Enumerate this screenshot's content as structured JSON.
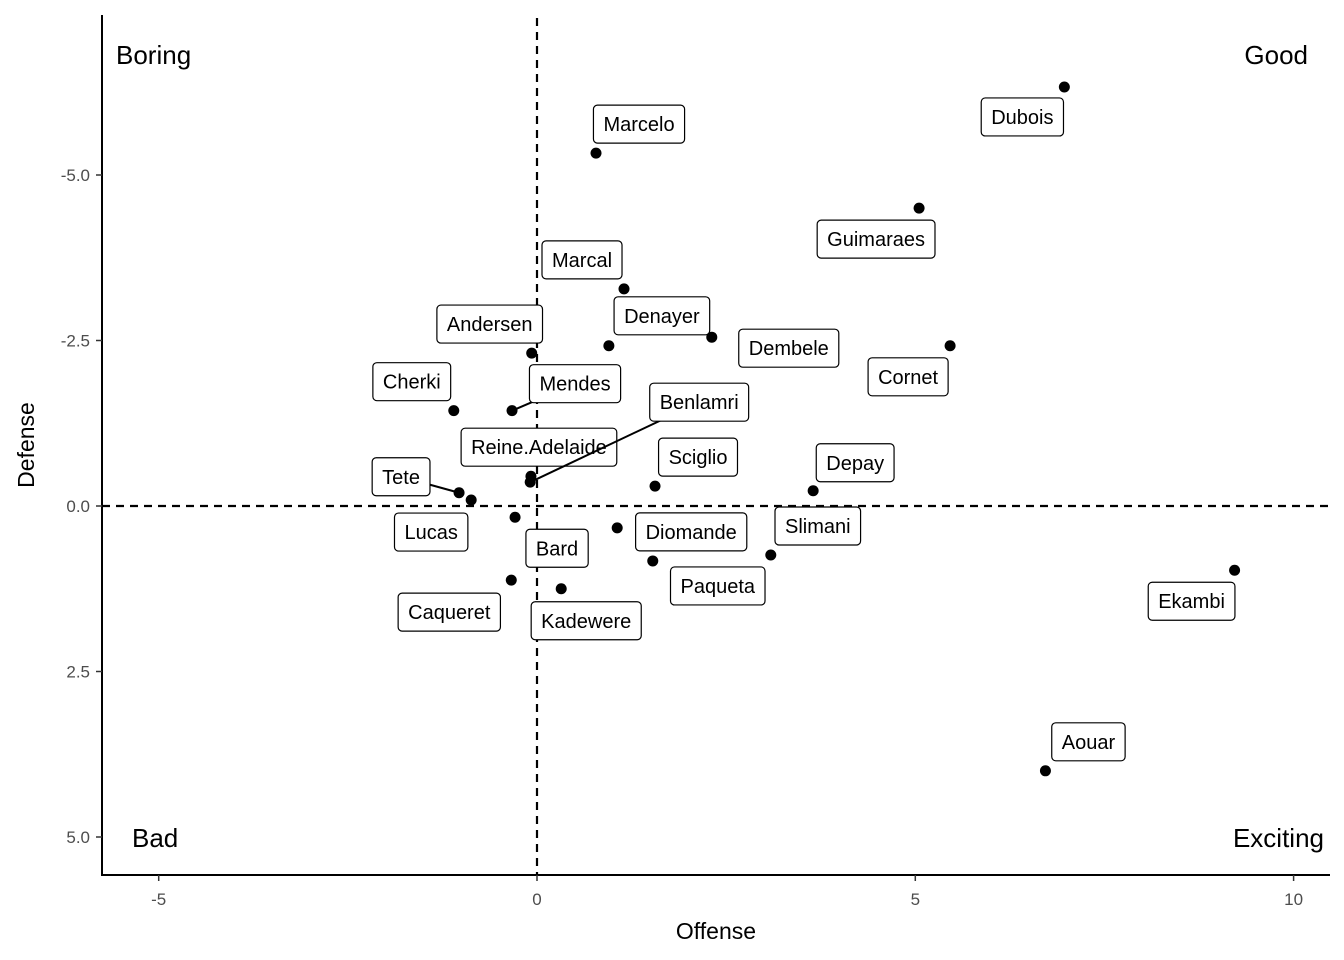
{
  "chart_data": {
    "type": "scatter",
    "xlabel": "Offense",
    "ylabel": "Defense",
    "xlim": [
      -5.8,
      10.4
    ],
    "ylim": [
      -7.4,
      5.6
    ],
    "y_reversed": true,
    "x_ticks": [
      -5,
      0,
      5,
      10
    ],
    "x_tick_labels": [
      "-5",
      "0",
      "5",
      "10"
    ],
    "y_ticks": [
      -5,
      -2.5,
      0,
      2.5,
      5
    ],
    "y_tick_labels": [
      "-5.0",
      "-2.5",
      "0.0",
      "2.5",
      "5.0"
    ],
    "reference_lines": {
      "x": 0,
      "y": 0,
      "style": "dashed"
    },
    "quadrant_labels": {
      "top_left": "Boring",
      "top_right": "Good",
      "bottom_left": "Bad",
      "bottom_right": "Exciting"
    },
    "grid": false,
    "points": [
      {
        "name": "Dubois",
        "x": 6.97,
        "y": -6.33
      },
      {
        "name": "Marcelo",
        "x": 0.78,
        "y": -5.33
      },
      {
        "name": "Guimaraes",
        "x": 5.05,
        "y": -4.5
      },
      {
        "name": "Marcal",
        "x": 1.15,
        "y": -3.28
      },
      {
        "name": "Denayer",
        "x": 0.95,
        "y": -2.42
      },
      {
        "name": "Dembele",
        "x": 2.31,
        "y": -2.55
      },
      {
        "name": "Cornet",
        "x": 5.46,
        "y": -2.42
      },
      {
        "name": "Andersen",
        "x": -0.07,
        "y": -2.31
      },
      {
        "name": "Cherki",
        "x": -1.1,
        "y": -1.44
      },
      {
        "name": "Mendes",
        "x": -0.33,
        "y": -1.44
      },
      {
        "name": "Reine.Adelaide",
        "x": -0.08,
        "y": -0.45
      },
      {
        "name": "Benlamri",
        "x": -0.09,
        "y": -0.36
      },
      {
        "name": "Sciglio",
        "x": 1.56,
        "y": -0.3
      },
      {
        "name": "Depay",
        "x": 3.65,
        "y": -0.23
      },
      {
        "name": "Tete",
        "x": -1.03,
        "y": -0.2
      },
      {
        "name": "Lucas",
        "x": -0.87,
        "y": -0.09
      },
      {
        "name": "Bard",
        "x": -0.29,
        "y": 0.17
      },
      {
        "name": "Diomande",
        "x": 1.06,
        "y": 0.33
      },
      {
        "name": "Slimani",
        "x": 3.09,
        "y": 0.74
      },
      {
        "name": "Paqueta",
        "x": 1.53,
        "y": 0.83
      },
      {
        "name": "Caqueret",
        "x": -0.34,
        "y": 1.12
      },
      {
        "name": "Kadewere",
        "x": 0.32,
        "y": 1.25
      },
      {
        "name": "Ekambi",
        "x": 9.22,
        "y": 0.97
      },
      {
        "name": "Aouar",
        "x": 6.72,
        "y": 4.0
      }
    ]
  }
}
